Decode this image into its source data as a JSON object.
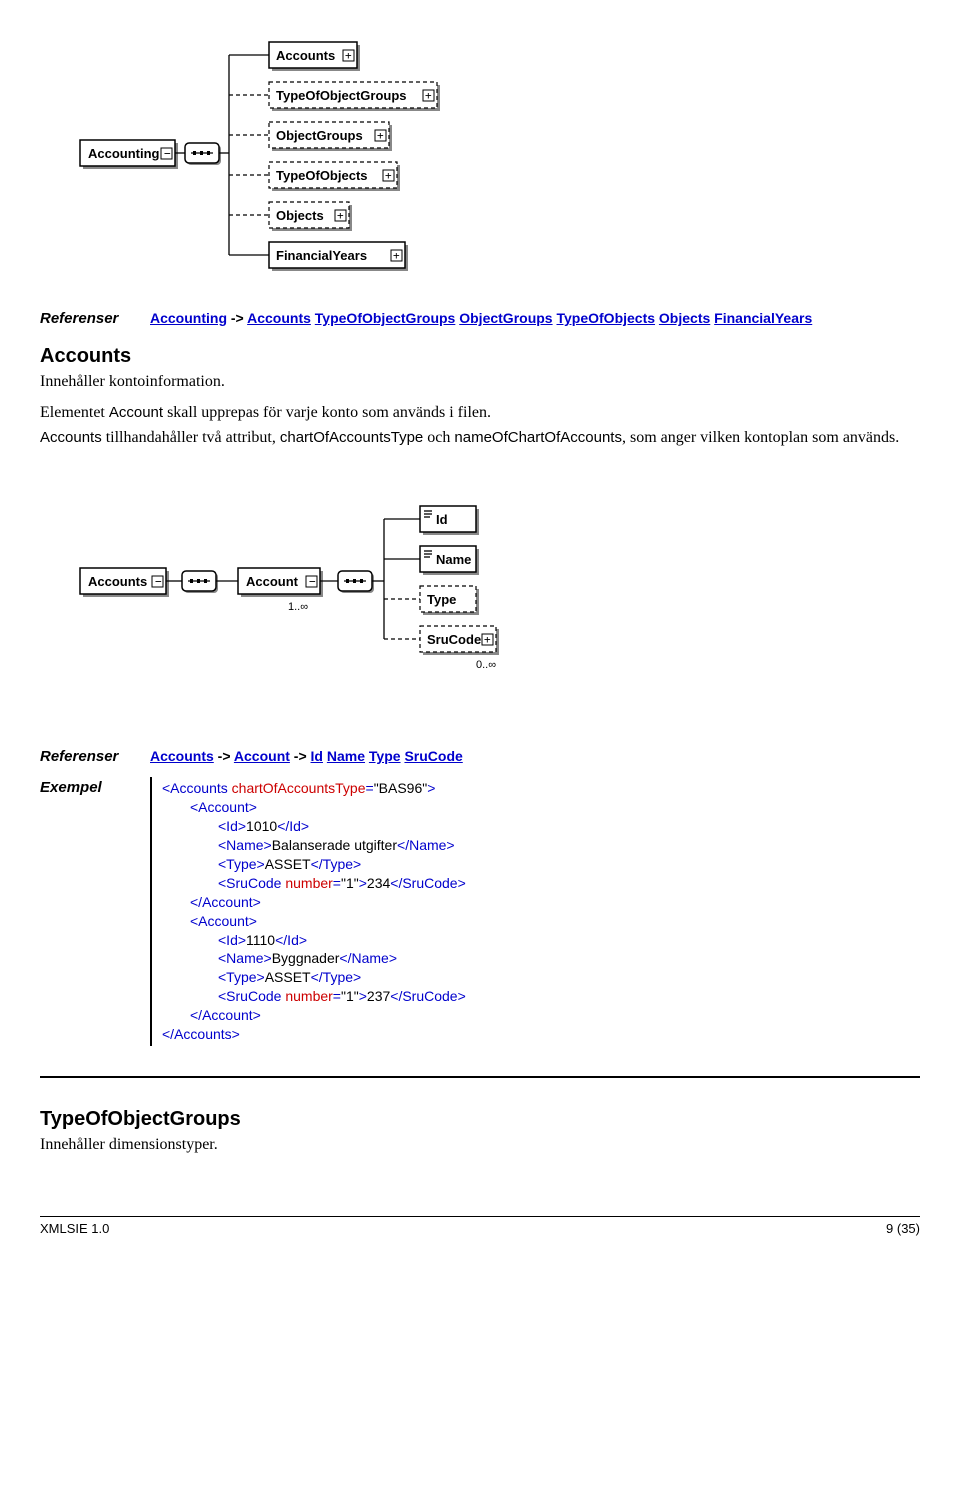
{
  "diagram1": {
    "root": "Accounting",
    "children": [
      {
        "label": "Accounts",
        "dashed": false
      },
      {
        "label": "TypeOfObjectGroups",
        "dashed": true
      },
      {
        "label": "ObjectGroups",
        "dashed": true
      },
      {
        "label": "TypeOfObjects",
        "dashed": true
      },
      {
        "label": "Objects",
        "dashed": true
      },
      {
        "label": "FinancialYears",
        "dashed": false
      }
    ]
  },
  "ref1": {
    "label": "Referenser",
    "prefix": "Accounting",
    "arrow": "->",
    "links": [
      "Accounts",
      "TypeOfObjectGroups",
      "ObjectGroups",
      "TypeOfObjects",
      "Objects",
      "FinancialYears"
    ]
  },
  "section_accounts": {
    "title": "Accounts",
    "p1": "Innehåller kontoinformation.",
    "p2_pre": "Elementet ",
    "p2_mono": "Account",
    "p2_post": " skall upprepas för varje konto som används i filen.",
    "p3_a": "Accounts",
    "p3_b": " tillhandahåller två attribut, ",
    "p3_c": "chartOfAccountsType",
    "p3_d": " och ",
    "p3_e": "nameOfChartOfAccounts",
    "p3_f": ", som anger vilken kontoplan som används."
  },
  "diagram2": {
    "left": "Accounts",
    "mid": "Account",
    "card1": "1..∞",
    "children": [
      {
        "label": "Id",
        "dashed": false,
        "lines": true
      },
      {
        "label": "Name",
        "dashed": false,
        "lines": true
      },
      {
        "label": "Type",
        "dashed": true,
        "lines": false
      },
      {
        "label": "SruCode",
        "dashed": true,
        "lines": false
      }
    ],
    "card2": "0..∞"
  },
  "ref2": {
    "label": "Referenser",
    "chain": [
      "Accounts",
      "Account"
    ],
    "arrow": "->",
    "tail": [
      "Id",
      "Name",
      "Type",
      "SruCode"
    ]
  },
  "exempel": {
    "label": "Exempel",
    "lines": [
      {
        "ind": 0,
        "parts": [
          {
            "t": "tag",
            "v": "<Accounts "
          },
          {
            "t": "attr",
            "v": "chartOfAccountsType"
          },
          {
            "t": "tag",
            "v": "="
          },
          {
            "t": "txt",
            "v": "\"BAS96\""
          },
          {
            "t": "tag",
            "v": ">"
          }
        ]
      },
      {
        "ind": 1,
        "parts": [
          {
            "t": "tag",
            "v": "<Account>"
          }
        ]
      },
      {
        "ind": 2,
        "parts": [
          {
            "t": "tag",
            "v": "<Id>"
          },
          {
            "t": "txt",
            "v": "1010"
          },
          {
            "t": "tag",
            "v": "</Id>"
          }
        ]
      },
      {
        "ind": 2,
        "parts": [
          {
            "t": "tag",
            "v": "<Name>"
          },
          {
            "t": "txt",
            "v": "Balanserade utgifter"
          },
          {
            "t": "tag",
            "v": "</Name>"
          }
        ]
      },
      {
        "ind": 2,
        "parts": [
          {
            "t": "tag",
            "v": "<Type>"
          },
          {
            "t": "txt",
            "v": "ASSET"
          },
          {
            "t": "tag",
            "v": "</Type>"
          }
        ]
      },
      {
        "ind": 2,
        "parts": [
          {
            "t": "tag",
            "v": "<SruCode "
          },
          {
            "t": "attr",
            "v": "number"
          },
          {
            "t": "tag",
            "v": "="
          },
          {
            "t": "txt",
            "v": "\"1\""
          },
          {
            "t": "tag",
            "v": ">"
          },
          {
            "t": "txt",
            "v": "234"
          },
          {
            "t": "tag",
            "v": "</SruCode>"
          }
        ]
      },
      {
        "ind": 1,
        "parts": [
          {
            "t": "tag",
            "v": "</Account>"
          }
        ]
      },
      {
        "ind": 1,
        "parts": [
          {
            "t": "tag",
            "v": "<Account>"
          }
        ]
      },
      {
        "ind": 2,
        "parts": [
          {
            "t": "tag",
            "v": "<Id>"
          },
          {
            "t": "txt",
            "v": "1110"
          },
          {
            "t": "tag",
            "v": "</Id>"
          }
        ]
      },
      {
        "ind": 2,
        "parts": [
          {
            "t": "tag",
            "v": "<Name>"
          },
          {
            "t": "txt",
            "v": "Byggnader"
          },
          {
            "t": "tag",
            "v": "</Name>"
          }
        ]
      },
      {
        "ind": 2,
        "parts": [
          {
            "t": "tag",
            "v": "<Type>"
          },
          {
            "t": "txt",
            "v": "ASSET"
          },
          {
            "t": "tag",
            "v": "</Type>"
          }
        ]
      },
      {
        "ind": 2,
        "parts": [
          {
            "t": "tag",
            "v": "<SruCode "
          },
          {
            "t": "attr",
            "v": "number"
          },
          {
            "t": "tag",
            "v": "="
          },
          {
            "t": "txt",
            "v": "\"1\""
          },
          {
            "t": "tag",
            "v": ">"
          },
          {
            "t": "txt",
            "v": "237"
          },
          {
            "t": "tag",
            "v": "</SruCode>"
          }
        ]
      },
      {
        "ind": 1,
        "parts": [
          {
            "t": "tag",
            "v": "</Account>"
          }
        ]
      },
      {
        "ind": 0,
        "parts": [
          {
            "t": "tag",
            "v": "</Accounts>"
          }
        ]
      }
    ]
  },
  "section_toog": {
    "title": "TypeOfObjectGroups",
    "p1": "Innehåller dimensionstyper."
  },
  "footer": {
    "left": "XMLSIE 1.0",
    "right": "9 (35)"
  },
  "colors": {
    "link": "#0000cc",
    "attr": "#cc0000",
    "text": "#000000",
    "bg": "#ffffff",
    "shadow": "#888888"
  }
}
